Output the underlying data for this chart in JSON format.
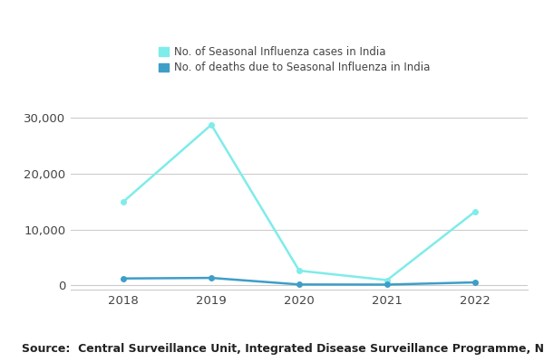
{
  "years": [
    2018,
    2019,
    2020,
    2021,
    2022
  ],
  "cases": [
    15000,
    28800,
    2600,
    900,
    13200
  ],
  "deaths": [
    1200,
    1300,
    120,
    100,
    500
  ],
  "cases_color": "#7EECEA",
  "deaths_color": "#3D9EC8",
  "cases_label": "No. of Seasonal Influenza cases in India",
  "deaths_label": "No. of deaths due to Seasonal Influenza in India",
  "ylim": [
    -800,
    33000
  ],
  "yticks": [
    0,
    10000,
    20000,
    30000
  ],
  "ytick_labels": [
    "0",
    "10,000",
    "20,000",
    "30,000"
  ],
  "source_text": "Source:  Central Surveillance Unit, Integrated Disease Surveillance Programme, NCDC",
  "bg_color": "#ffffff",
  "grid_color": "#cccccc",
  "line_width": 1.8,
  "marker_size": 5
}
